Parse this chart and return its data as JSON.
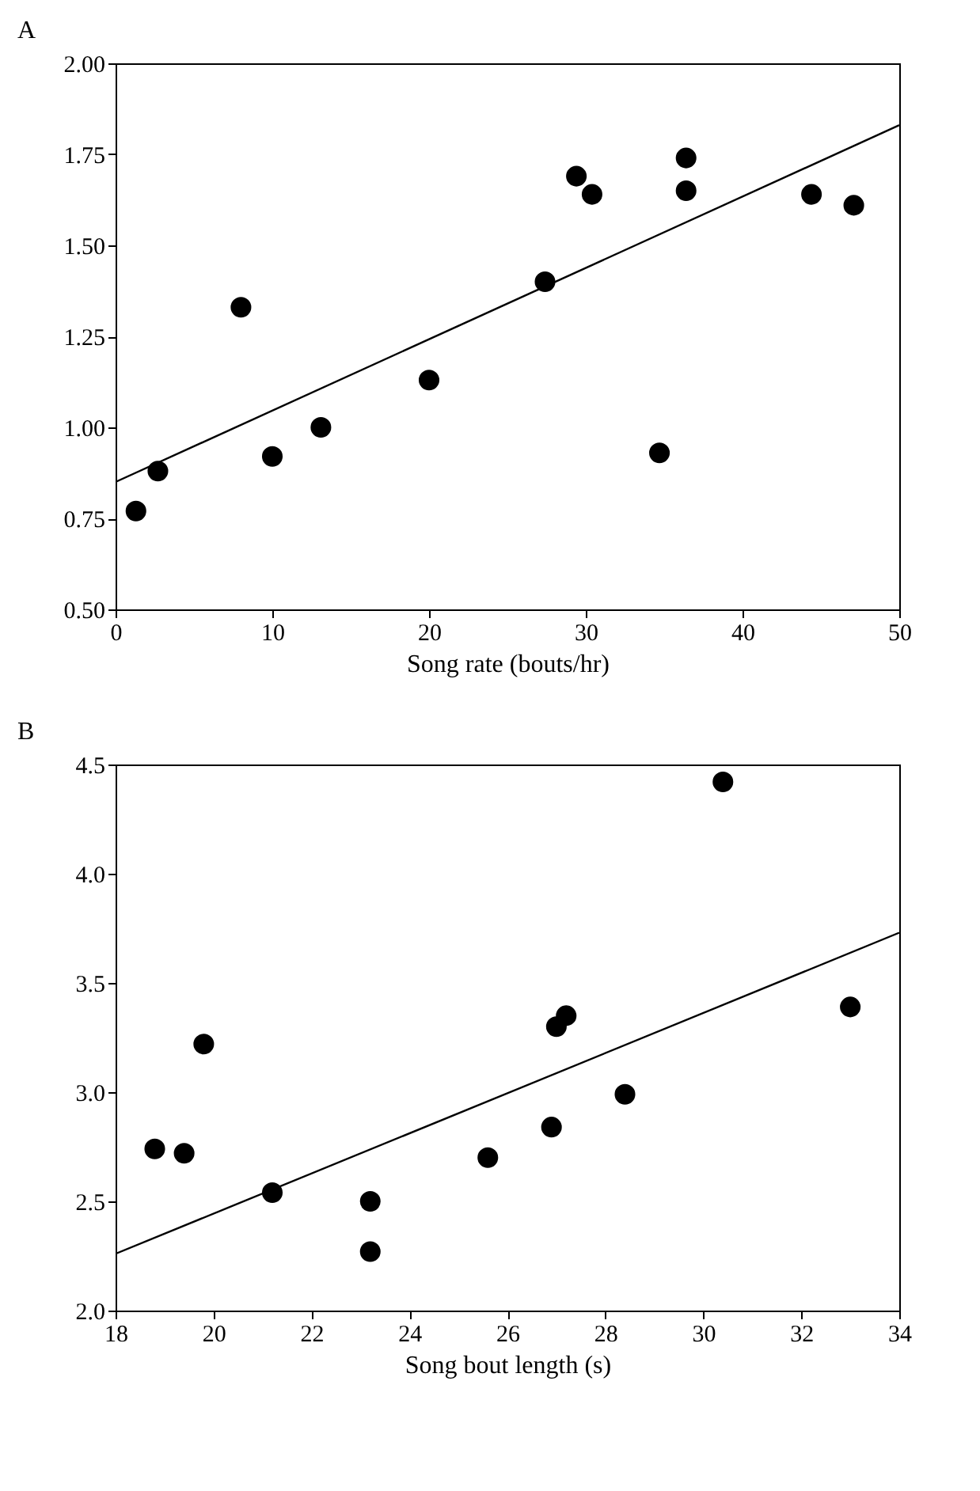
{
  "chart_data": [
    {
      "type": "scatter",
      "title": "A",
      "xlabel": "Song rate (bouts/hr)",
      "xlim": [
        0,
        50
      ],
      "xticks": [
        0,
        10,
        20,
        30,
        40,
        50
      ],
      "ylim": [
        0.5,
        2.0
      ],
      "yticks": [
        {
          "value": 0.5,
          "label": "0.50"
        },
        {
          "value": 0.75,
          "label": "0.75"
        },
        {
          "value": 1.0,
          "label": "1.00"
        },
        {
          "value": 1.25,
          "label": "1.25"
        },
        {
          "value": 1.5,
          "label": "1.50"
        },
        {
          "value": 1.75,
          "label": "1.75"
        },
        {
          "value": 2.0,
          "label": "2.00"
        }
      ],
      "grid": false,
      "series": [
        {
          "marker": "circle",
          "color": "#000000",
          "x": [
            1.3,
            2.7,
            8.0,
            10.0,
            13.1,
            20.0,
            27.4,
            29.4,
            30.4,
            34.7,
            36.4,
            36.4,
            44.4,
            47.1
          ],
          "values": [
            0.77,
            0.88,
            1.33,
            0.92,
            1.0,
            1.13,
            1.4,
            1.69,
            1.64,
            0.93,
            1.74,
            1.65,
            1.64,
            1.61
          ]
        },
        {
          "type": "line",
          "marker": "none",
          "line_style": "solid",
          "color": "#000000",
          "x": [
            0,
            50
          ],
          "values": [
            0.85,
            1.83
          ]
        }
      ]
    },
    {
      "type": "scatter",
      "title": "B",
      "xlabel": "Song bout length (s)",
      "xlim": [
        18,
        34
      ],
      "xticks": [
        18,
        20,
        22,
        24,
        26,
        28,
        30,
        32,
        34
      ],
      "ylim": [
        2.0,
        4.5
      ],
      "yticks": [
        {
          "value": 2.0,
          "label": "2.0"
        },
        {
          "value": 2.5,
          "label": "2.5"
        },
        {
          "value": 3.0,
          "label": "3.0"
        },
        {
          "value": 3.5,
          "label": "3.5"
        },
        {
          "value": 4.0,
          "label": "4.0"
        },
        {
          "value": 4.5,
          "label": "4.5"
        }
      ],
      "grid": false,
      "series": [
        {
          "marker": "circle",
          "color": "#000000",
          "x": [
            18.8,
            19.4,
            19.8,
            21.2,
            23.2,
            23.2,
            25.6,
            26.9,
            27.0,
            27.2,
            28.4,
            30.4,
            33.0
          ],
          "values": [
            2.74,
            2.72,
            3.22,
            2.54,
            2.5,
            2.27,
            2.7,
            2.84,
            3.3,
            3.35,
            2.99,
            4.42,
            3.39
          ]
        },
        {
          "type": "line",
          "marker": "none",
          "line_style": "solid",
          "color": "#000000",
          "x": [
            18,
            34
          ],
          "values": [
            2.26,
            3.73
          ]
        }
      ]
    }
  ]
}
